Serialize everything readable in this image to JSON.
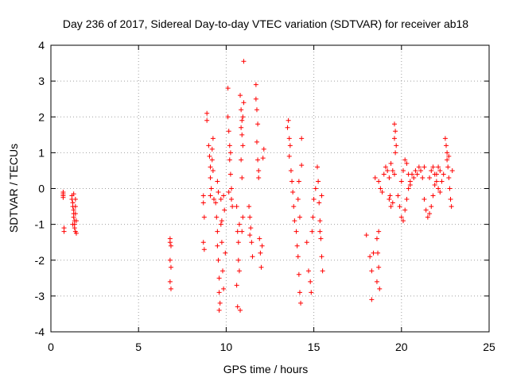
{
  "chart_data": {
    "type": "scatter",
    "title": "Day 236 of 2017, Sidereal Day-to-day VTEC variation (SDTVAR) for receiver ab18",
    "xlabel": "GPS time / hours",
    "ylabel": "SDTVAR / TECUs",
    "xlim": [
      0,
      25
    ],
    "ylim": [
      -4,
      4
    ],
    "xticks": [
      0,
      5,
      10,
      15,
      20,
      25
    ],
    "yticks": [
      -4,
      -3,
      -2,
      -1,
      0,
      1,
      2,
      3,
      4
    ],
    "grid": true,
    "marker": "+",
    "series": [
      {
        "name": "SDTVAR",
        "color": "#ff0000",
        "points": [
          [
            0.7,
            -0.1
          ],
          [
            0.7,
            -0.15
          ],
          [
            0.7,
            -0.2
          ],
          [
            0.7,
            -0.25
          ],
          [
            0.75,
            -1.1
          ],
          [
            0.75,
            -1.2
          ],
          [
            1.2,
            -0.2
          ],
          [
            1.2,
            -0.3
          ],
          [
            1.25,
            -0.4
          ],
          [
            1.25,
            -0.5
          ],
          [
            1.3,
            -0.6
          ],
          [
            1.3,
            -0.7
          ],
          [
            1.3,
            -0.8
          ],
          [
            1.35,
            -0.9
          ],
          [
            1.35,
            -1.0
          ],
          [
            1.35,
            -1.1
          ],
          [
            1.4,
            -1.2
          ],
          [
            1.4,
            -0.3
          ],
          [
            1.4,
            -0.5
          ],
          [
            1.4,
            -0.7
          ],
          [
            1.45,
            -0.9
          ],
          [
            1.45,
            -1.25
          ],
          [
            1.3,
            -0.15
          ],
          [
            1.25,
            -1.0
          ],
          [
            6.8,
            -1.4
          ],
          [
            6.8,
            -1.5
          ],
          [
            6.85,
            -1.6
          ],
          [
            6.8,
            -2.0
          ],
          [
            6.85,
            -2.2
          ],
          [
            6.8,
            -2.6
          ],
          [
            6.85,
            -2.8
          ],
          [
            8.7,
            -0.2
          ],
          [
            8.7,
            -0.4
          ],
          [
            8.75,
            -0.8
          ],
          [
            8.7,
            -1.5
          ],
          [
            8.75,
            -1.7
          ],
          [
            8.9,
            2.1
          ],
          [
            8.9,
            1.9
          ],
          [
            9.0,
            1.2
          ],
          [
            9.05,
            0.9
          ],
          [
            9.1,
            0.6
          ],
          [
            9.1,
            0.3
          ],
          [
            9.15,
            0.0
          ],
          [
            9.2,
            0.8
          ],
          [
            9.2,
            1.1
          ],
          [
            9.25,
            0.5
          ],
          [
            9.1,
            -0.2
          ],
          [
            9.3,
            -0.3
          ],
          [
            9.25,
            1.4
          ],
          [
            9.4,
            -0.4
          ],
          [
            9.45,
            -0.8
          ],
          [
            9.5,
            -1.2
          ],
          [
            9.5,
            -1.6
          ],
          [
            9.55,
            -2.0
          ],
          [
            9.6,
            -2.5
          ],
          [
            9.6,
            -2.9
          ],
          [
            9.65,
            -3.2
          ],
          [
            9.6,
            -3.4
          ],
          [
            9.7,
            -0.3
          ],
          [
            9.7,
            -1.0
          ],
          [
            9.75,
            -1.5
          ],
          [
            9.8,
            -2.3
          ],
          [
            9.85,
            -2.8
          ],
          [
            9.5,
            0.2
          ],
          [
            9.55,
            -0.1
          ],
          [
            9.9,
            -0.6
          ],
          [
            9.95,
            -1.8
          ],
          [
            9.85,
            -0.2
          ],
          [
            9.75,
            -0.9
          ],
          [
            10.1,
            2.8
          ],
          [
            10.1,
            2.0
          ],
          [
            10.15,
            1.6
          ],
          [
            10.2,
            1.2
          ],
          [
            10.2,
            0.8
          ],
          [
            10.25,
            0.4
          ],
          [
            10.3,
            0.0
          ],
          [
            10.3,
            -0.3
          ],
          [
            10.35,
            -0.5
          ],
          [
            10.15,
            -0.1
          ],
          [
            10.25,
            1.0
          ],
          [
            10.6,
            -0.5
          ],
          [
            10.65,
            -1.2
          ],
          [
            10.7,
            -1.5
          ],
          [
            10.7,
            -2.0
          ],
          [
            10.75,
            -2.3
          ],
          [
            10.6,
            -2.7
          ],
          [
            10.65,
            -3.3
          ],
          [
            10.8,
            -3.4
          ],
          [
            10.75,
            -1.0
          ],
          [
            10.8,
            2.6
          ],
          [
            10.85,
            2.2
          ],
          [
            10.9,
            1.9
          ],
          [
            10.9,
            1.5
          ],
          [
            10.95,
            1.2
          ],
          [
            10.85,
            0.8
          ],
          [
            10.9,
            0.3
          ],
          [
            10.95,
            -0.8
          ],
          [
            10.9,
            -1.2
          ],
          [
            11.0,
            2.4
          ],
          [
            10.85,
            1.7
          ],
          [
            10.95,
            2.0
          ],
          [
            11.0,
            3.55
          ],
          [
            11.3,
            -0.5
          ],
          [
            11.35,
            -0.8
          ],
          [
            11.4,
            -1.1
          ],
          [
            11.45,
            -1.5
          ],
          [
            11.5,
            -1.9
          ],
          [
            11.35,
            -1.3
          ],
          [
            11.7,
            2.9
          ],
          [
            11.7,
            2.5
          ],
          [
            11.75,
            2.2
          ],
          [
            11.8,
            1.8
          ],
          [
            11.75,
            1.3
          ],
          [
            11.8,
            0.8
          ],
          [
            11.85,
            0.3
          ],
          [
            11.9,
            -1.4
          ],
          [
            11.95,
            -1.8
          ],
          [
            12.0,
            -2.2
          ],
          [
            12.05,
            -1.6
          ],
          [
            11.85,
            0.5
          ],
          [
            12.1,
            0.85
          ],
          [
            12.15,
            1.1
          ],
          [
            13.5,
            1.7
          ],
          [
            13.55,
            1.9
          ],
          [
            13.6,
            1.4
          ],
          [
            13.65,
            1.2
          ],
          [
            13.6,
            0.9
          ],
          [
            13.7,
            0.5
          ],
          [
            13.75,
            0.2
          ],
          [
            13.8,
            -0.1
          ],
          [
            13.85,
            -0.5
          ],
          [
            13.9,
            -0.9
          ],
          [
            14.0,
            -1.2
          ],
          [
            14.05,
            -1.6
          ],
          [
            14.1,
            -1.9
          ],
          [
            14.15,
            -2.4
          ],
          [
            14.2,
            -2.9
          ],
          [
            14.25,
            -3.2
          ],
          [
            14.1,
            -0.3
          ],
          [
            14.15,
            0.2
          ],
          [
            14.2,
            -0.8
          ],
          [
            14.3,
            1.4
          ],
          [
            14.3,
            0.65
          ],
          [
            14.6,
            -1.5
          ],
          [
            14.7,
            -2.3
          ],
          [
            14.8,
            -2.6
          ],
          [
            14.85,
            -2.9
          ],
          [
            14.9,
            -1.2
          ],
          [
            14.95,
            -0.8
          ],
          [
            15.0,
            -0.3
          ],
          [
            15.1,
            0.0
          ],
          [
            15.2,
            0.6
          ],
          [
            15.25,
            0.2
          ],
          [
            15.3,
            -0.4
          ],
          [
            15.35,
            -0.9
          ],
          [
            15.4,
            -1.4
          ],
          [
            15.45,
            -1.9
          ],
          [
            15.5,
            -2.3
          ],
          [
            15.45,
            -0.2
          ],
          [
            15.35,
            -1.2
          ],
          [
            18.0,
            -1.3
          ],
          [
            18.2,
            -1.9
          ],
          [
            18.3,
            -2.3
          ],
          [
            18.3,
            -3.1
          ],
          [
            18.4,
            -1.8
          ],
          [
            18.6,
            -1.4
          ],
          [
            18.65,
            -1.8
          ],
          [
            18.7,
            -2.2
          ],
          [
            18.6,
            -2.6
          ],
          [
            18.75,
            -2.8
          ],
          [
            18.7,
            -1.2
          ],
          [
            18.5,
            0.3
          ],
          [
            18.7,
            0.2
          ],
          [
            18.8,
            0.0
          ],
          [
            18.9,
            -0.1
          ],
          [
            19.0,
            0.4
          ],
          [
            19.1,
            0.6
          ],
          [
            19.2,
            0.5
          ],
          [
            19.3,
            0.3
          ],
          [
            19.4,
            0.7
          ],
          [
            19.5,
            0.5
          ],
          [
            19.6,
            0.4
          ],
          [
            19.3,
            -0.3
          ],
          [
            19.4,
            -0.5
          ],
          [
            19.5,
            -0.4
          ],
          [
            19.35,
            -0.2
          ],
          [
            19.6,
            1.8
          ],
          [
            19.65,
            1.6
          ],
          [
            19.6,
            1.4
          ],
          [
            19.7,
            1.2
          ],
          [
            19.65,
            1.0
          ],
          [
            19.8,
            -0.2
          ],
          [
            19.9,
            -0.5
          ],
          [
            20.0,
            -0.8
          ],
          [
            20.1,
            -0.9
          ],
          [
            20.2,
            -0.6
          ],
          [
            20.3,
            -0.3
          ],
          [
            20.4,
            0.0
          ],
          [
            20.5,
            0.2
          ],
          [
            20.6,
            0.4
          ],
          [
            20.7,
            0.3
          ],
          [
            20.8,
            0.5
          ],
          [
            20.9,
            0.4
          ],
          [
            21.0,
            0.6
          ],
          [
            21.1,
            0.5
          ],
          [
            21.2,
            0.3
          ],
          [
            21.3,
            0.6
          ],
          [
            20.0,
            0.2
          ],
          [
            20.1,
            0.5
          ],
          [
            20.2,
            0.8
          ],
          [
            20.3,
            0.7
          ],
          [
            20.4,
            0.4
          ],
          [
            20.5,
            0.1
          ],
          [
            21.3,
            -0.3
          ],
          [
            21.4,
            -0.6
          ],
          [
            21.5,
            -0.8
          ],
          [
            21.6,
            -0.7
          ],
          [
            21.7,
            -0.5
          ],
          [
            21.8,
            -0.2
          ],
          [
            21.9,
            0.1
          ],
          [
            22.0,
            0.4
          ],
          [
            22.1,
            0.6
          ],
          [
            22.2,
            0.5
          ],
          [
            21.6,
            0.3
          ],
          [
            21.7,
            0.5
          ],
          [
            21.8,
            0.6
          ],
          [
            21.9,
            0.4
          ],
          [
            22.0,
            0.2
          ],
          [
            22.1,
            0.0
          ],
          [
            22.2,
            -0.1
          ],
          [
            22.3,
            0.2
          ],
          [
            22.4,
            0.4
          ],
          [
            22.5,
            1.4
          ],
          [
            22.55,
            1.2
          ],
          [
            22.6,
            1.0
          ],
          [
            22.6,
            0.8
          ],
          [
            22.65,
            0.6
          ],
          [
            22.7,
            0.3
          ],
          [
            22.75,
            0.0
          ],
          [
            22.8,
            -0.3
          ],
          [
            22.85,
            -0.5
          ],
          [
            22.9,
            0.5
          ],
          [
            22.7,
            0.9
          ]
        ]
      }
    ]
  }
}
